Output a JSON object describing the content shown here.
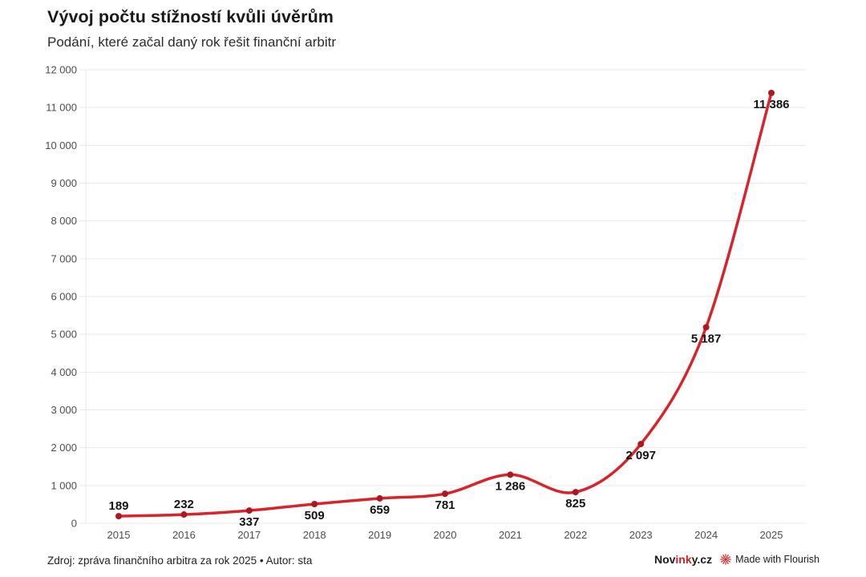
{
  "header": {
    "title": "Vývoj počtu stížností kvůli úvěrům",
    "subtitle": "Podání, které začal daný rok řešit finanční arbitr"
  },
  "chart_data": {
    "type": "line",
    "title": "Vývoj počtu stížností kvůli úvěrům",
    "subtitle": "Podání, které začal daný rok řešit finanční arbitr",
    "xlabel": "",
    "ylabel": "",
    "categories": [
      "2015",
      "2016",
      "2017",
      "2018",
      "2019",
      "2020",
      "2021",
      "2022",
      "2023",
      "2024",
      "2025"
    ],
    "values": [
      189,
      232,
      337,
      509,
      659,
      781,
      1286,
      825,
      2097,
      5187,
      11386
    ],
    "value_labels": [
      "189",
      "232",
      "337",
      "509",
      "659",
      "781",
      "1 286",
      "825",
      "2 097",
      "5 187",
      "11 386"
    ],
    "label_positions": [
      "above",
      "above",
      "below",
      "below",
      "below",
      "below",
      "below",
      "below",
      "below",
      "below",
      "below"
    ],
    "ylim": [
      0,
      12000
    ],
    "y_tick_step": 1000,
    "y_tick_labels": [
      "0",
      "1 000",
      "2 000",
      "3 000",
      "4 000",
      "5 000",
      "6 000",
      "7 000",
      "8 000",
      "9 000",
      "10 000",
      "11 000",
      "12 000"
    ],
    "grid": "horizontal",
    "legend": "none",
    "line_color": "#d9232b",
    "point_color": "#b0161d",
    "label_color": "#141414",
    "grid_color": "#e9e9e9",
    "axis_text_color": "#4d4d4d",
    "curve": "smooth"
  },
  "footer": {
    "source": "Zdroj: zpráva finančního arbitra za rok 2025 • Autor: sta",
    "logo_part1": "Nov",
    "logo_part2": "ink",
    "logo_part3": "y.cz",
    "flourish_label": "Made with Flourish",
    "flourish_icon_color": "#d12b2b"
  }
}
